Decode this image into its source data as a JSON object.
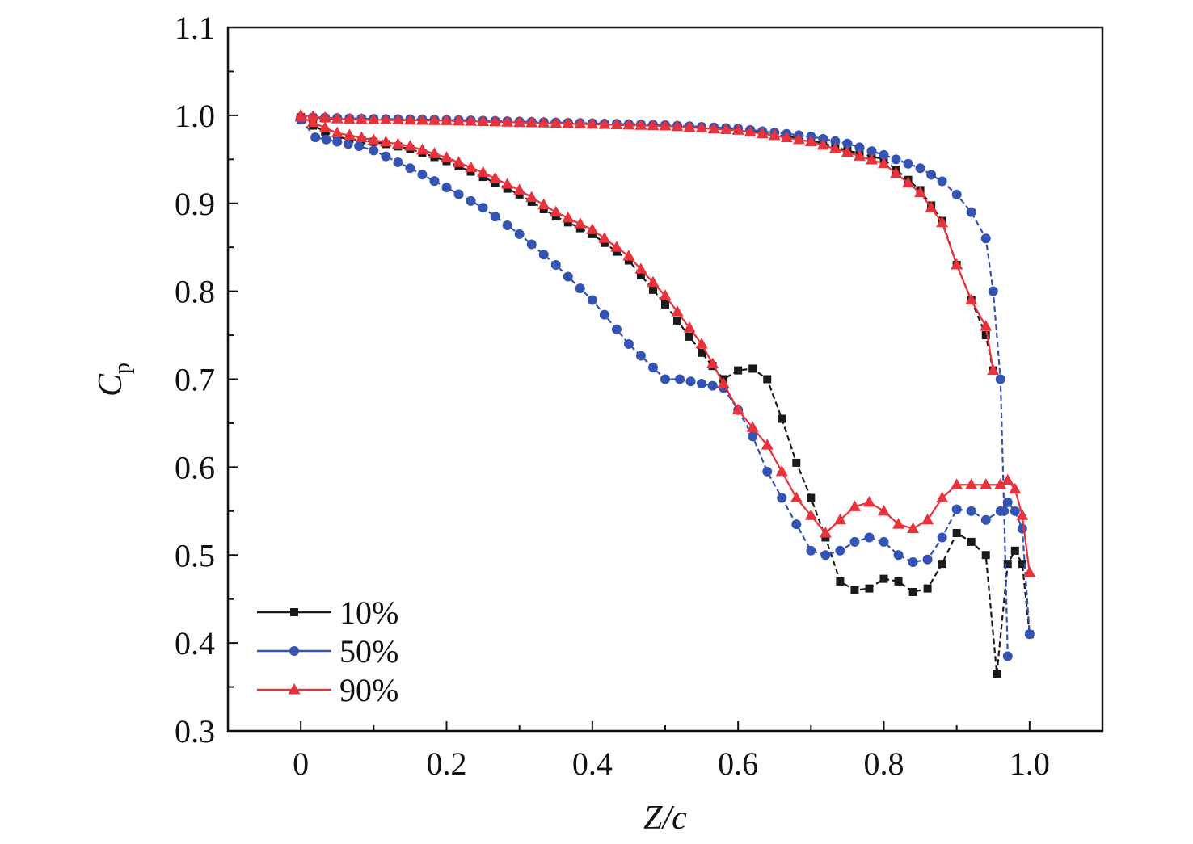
{
  "chart_data": {
    "type": "line",
    "xlabel": "Z/c",
    "ylabel": "C",
    "ylabel_sub": "p",
    "xlim": [
      -0.1,
      1.1
    ],
    "ylim": [
      0.3,
      1.1
    ],
    "x_ticks": [
      0,
      0.2,
      0.4,
      0.6,
      0.8,
      1.0
    ],
    "x_tick_labels": [
      "0",
      "0.2",
      "0.4",
      "0.6",
      "0.8",
      "1.0"
    ],
    "y_ticks": [
      0.3,
      0.4,
      0.5,
      0.6,
      0.7,
      0.8,
      0.9,
      1.0,
      1.1
    ],
    "y_tick_labels": [
      "0.3",
      "0.4",
      "0.5",
      "0.6",
      "0.7",
      "0.8",
      "0.9",
      "1.0",
      "1.1"
    ],
    "grid": false,
    "legend_position": "bottom-left",
    "series": [
      {
        "name": "10%",
        "color": "#1a1a1a",
        "marker": "square",
        "line_style": "dashed",
        "upper": {
          "x": [
            0.0,
            0.05,
            0.1,
            0.2,
            0.3,
            0.4,
            0.5,
            0.6,
            0.65,
            0.7,
            0.75,
            0.8,
            0.85,
            0.88,
            0.9,
            0.92,
            0.94,
            0.95
          ],
          "y": [
            0.998,
            0.996,
            0.995,
            0.994,
            0.992,
            0.99,
            0.988,
            0.984,
            0.978,
            0.972,
            0.96,
            0.95,
            0.915,
            0.88,
            0.83,
            0.79,
            0.75,
            0.71
          ]
        },
        "lower": {
          "x": [
            0.0,
            0.05,
            0.1,
            0.15,
            0.2,
            0.25,
            0.3,
            0.35,
            0.4,
            0.45,
            0.5,
            0.55,
            0.58,
            0.6,
            0.62,
            0.64,
            0.66,
            0.68,
            0.7,
            0.72,
            0.74,
            0.76,
            0.78,
            0.8,
            0.82,
            0.84,
            0.86,
            0.88,
            0.9,
            0.92,
            0.94,
            0.955,
            0.97,
            0.98,
            0.99,
            1.0
          ],
          "y": [
            0.995,
            0.975,
            0.97,
            0.962,
            0.948,
            0.93,
            0.91,
            0.885,
            0.865,
            0.835,
            0.785,
            0.73,
            0.7,
            0.71,
            0.712,
            0.7,
            0.655,
            0.605,
            0.565,
            0.52,
            0.47,
            0.46,
            0.462,
            0.473,
            0.47,
            0.458,
            0.462,
            0.49,
            0.525,
            0.515,
            0.5,
            0.365,
            0.49,
            0.505,
            0.49,
            0.41
          ]
        }
      },
      {
        "name": "50%",
        "color": "#3553b2",
        "marker": "circle",
        "line_style": "dashed",
        "upper": {
          "x": [
            0.0,
            0.05,
            0.1,
            0.2,
            0.3,
            0.4,
            0.5,
            0.6,
            0.7,
            0.75,
            0.8,
            0.85,
            0.88,
            0.9,
            0.92,
            0.94,
            0.95,
            0.96,
            0.965,
            0.97
          ],
          "y": [
            0.998,
            0.997,
            0.996,
            0.995,
            0.993,
            0.991,
            0.989,
            0.985,
            0.976,
            0.968,
            0.955,
            0.94,
            0.925,
            0.91,
            0.89,
            0.86,
            0.8,
            0.7,
            0.55,
            0.385
          ]
        },
        "lower": {
          "x": [
            0.0,
            0.02,
            0.05,
            0.08,
            0.1,
            0.15,
            0.2,
            0.25,
            0.3,
            0.35,
            0.4,
            0.45,
            0.5,
            0.52,
            0.55,
            0.58,
            0.6,
            0.62,
            0.64,
            0.66,
            0.68,
            0.7,
            0.72,
            0.74,
            0.76,
            0.78,
            0.8,
            0.82,
            0.84,
            0.86,
            0.88,
            0.9,
            0.92,
            0.94,
            0.96,
            0.97,
            0.98,
            0.99,
            1.0
          ],
          "y": [
            0.995,
            0.975,
            0.97,
            0.965,
            0.96,
            0.94,
            0.918,
            0.895,
            0.865,
            0.83,
            0.79,
            0.74,
            0.7,
            0.7,
            0.695,
            0.69,
            0.665,
            0.635,
            0.595,
            0.565,
            0.535,
            0.505,
            0.5,
            0.505,
            0.515,
            0.52,
            0.515,
            0.5,
            0.492,
            0.495,
            0.52,
            0.552,
            0.55,
            0.54,
            0.55,
            0.56,
            0.55,
            0.53,
            0.41
          ]
        }
      },
      {
        "name": "90%",
        "color": "#e8323c",
        "marker": "triangle",
        "line_style": "solid",
        "upper": {
          "x": [
            0.0,
            0.05,
            0.1,
            0.2,
            0.3,
            0.4,
            0.5,
            0.6,
            0.65,
            0.7,
            0.75,
            0.8,
            0.85,
            0.88,
            0.9,
            0.92,
            0.94,
            0.95
          ],
          "y": [
            1.0,
            0.996,
            0.995,
            0.994,
            0.992,
            0.99,
            0.988,
            0.983,
            0.977,
            0.97,
            0.958,
            0.945,
            0.912,
            0.878,
            0.83,
            0.79,
            0.76,
            0.71
          ]
        },
        "lower": {
          "x": [
            0.0,
            0.05,
            0.1,
            0.15,
            0.2,
            0.25,
            0.3,
            0.35,
            0.4,
            0.45,
            0.5,
            0.55,
            0.58,
            0.6,
            0.62,
            0.64,
            0.66,
            0.68,
            0.7,
            0.72,
            0.74,
            0.76,
            0.78,
            0.8,
            0.82,
            0.84,
            0.86,
            0.88,
            0.9,
            0.92,
            0.94,
            0.96,
            0.97,
            0.98,
            0.99,
            1.0
          ],
          "y": [
            0.998,
            0.98,
            0.972,
            0.965,
            0.952,
            0.935,
            0.915,
            0.89,
            0.87,
            0.84,
            0.795,
            0.74,
            0.695,
            0.665,
            0.645,
            0.625,
            0.595,
            0.565,
            0.545,
            0.525,
            0.54,
            0.555,
            0.56,
            0.55,
            0.535,
            0.53,
            0.54,
            0.565,
            0.58,
            0.58,
            0.58,
            0.58,
            0.585,
            0.575,
            0.545,
            0.48
          ]
        }
      }
    ]
  }
}
